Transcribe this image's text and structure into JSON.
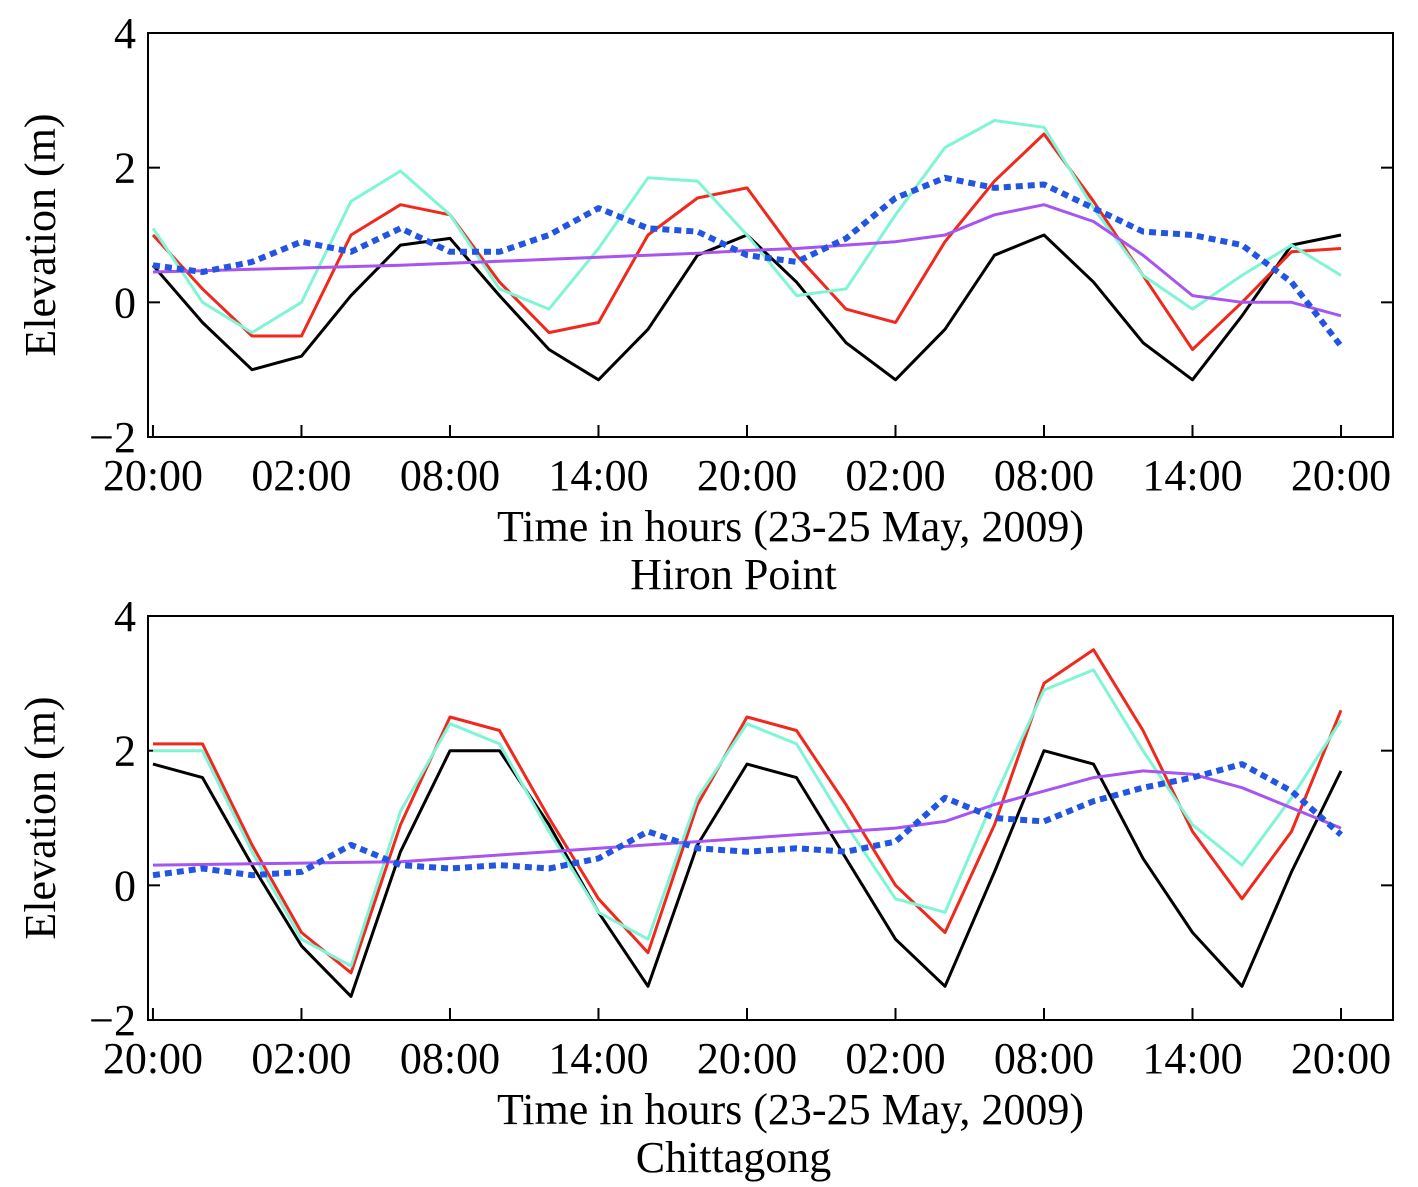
{
  "chart_data": [
    {
      "type": "line",
      "title": "Hiron Point",
      "x_label": "Time in hours (23-25 May, 2009)",
      "y_label": "Elevation (m)",
      "x": [
        0,
        2,
        4,
        6,
        8,
        10,
        12,
        14,
        16,
        18,
        20,
        22,
        24,
        26,
        28,
        30,
        32,
        34,
        36,
        38,
        40,
        42,
        44,
        46,
        48
      ],
      "xlim": [
        -0.2,
        50.1
      ],
      "xticks": [
        {
          "value": 0,
          "label": "20:00"
        },
        {
          "value": 6,
          "label": "02:00"
        },
        {
          "value": 12,
          "label": "08:00"
        },
        {
          "value": 18,
          "label": "14:00"
        },
        {
          "value": 24,
          "label": "20:00"
        },
        {
          "value": 30,
          "label": "02:00"
        },
        {
          "value": 36,
          "label": "08:00"
        },
        {
          "value": 42,
          "label": "14:00"
        },
        {
          "value": 48,
          "label": "20:00"
        }
      ],
      "ylim": [
        -2,
        4
      ],
      "yticks": [
        {
          "value": -2,
          "label": "−2"
        },
        0,
        2,
        4
      ],
      "series": [
        {
          "color": "#000000",
          "style": "solid",
          "values": [
            0.55,
            -0.3,
            -1.0,
            -0.8,
            0.1,
            0.85,
            0.95,
            0.1,
            -0.7,
            -1.15,
            -0.4,
            0.7,
            1.0,
            0.3,
            -0.6,
            -1.15,
            -0.4,
            0.7,
            1.0,
            0.3,
            -0.6,
            -1.15,
            -0.2,
            0.85,
            1.0
          ]
        },
        {
          "color": "#f0291e",
          "style": "solid",
          "values": [
            1.0,
            0.2,
            -0.5,
            -0.5,
            1.0,
            1.45,
            1.3,
            0.3,
            -0.45,
            -0.3,
            1.0,
            1.55,
            1.7,
            0.7,
            -0.1,
            -0.3,
            0.9,
            1.8,
            2.5,
            1.5,
            0.4,
            -0.7,
            0.0,
            0.75,
            0.8
          ]
        },
        {
          "color": "#7ff5d6",
          "style": "solid",
          "values": [
            1.1,
            0.0,
            -0.45,
            0.0,
            1.5,
            1.95,
            1.3,
            0.2,
            -0.1,
            0.8,
            1.85,
            1.8,
            1.0,
            0.1,
            0.2,
            1.3,
            2.3,
            2.7,
            2.6,
            1.4,
            0.4,
            -0.1,
            0.4,
            0.85,
            0.4
          ]
        },
        {
          "color": "#a855f0",
          "style": "solid",
          "values": [
            0.45,
            0.47,
            0.49,
            0.51,
            0.53,
            0.55,
            0.58,
            0.61,
            0.64,
            0.67,
            0.7,
            0.73,
            0.77,
            0.8,
            0.85,
            0.9,
            1.0,
            1.3,
            1.45,
            1.2,
            0.7,
            0.1,
            0.0,
            0.0,
            -0.2
          ]
        },
        {
          "color": "#2255e0",
          "style": "dotted",
          "values": [
            0.55,
            0.45,
            0.6,
            0.9,
            0.75,
            1.1,
            0.75,
            0.75,
            1.0,
            1.4,
            1.1,
            1.05,
            0.7,
            0.6,
            0.95,
            1.55,
            1.85,
            1.7,
            1.75,
            1.4,
            1.05,
            1.0,
            0.85,
            0.3,
            -0.65
          ]
        }
      ]
    },
    {
      "type": "line",
      "title": "Chittagong",
      "x_label": "Time in hours (23-25 May, 2009)",
      "y_label": "Elevation (m)",
      "x": [
        0,
        2,
        4,
        6,
        8,
        10,
        12,
        14,
        16,
        18,
        20,
        22,
        24,
        26,
        28,
        30,
        32,
        34,
        36,
        38,
        40,
        42,
        44,
        46,
        48
      ],
      "xlim": [
        -0.2,
        50.1
      ],
      "xticks": [
        {
          "value": 0,
          "label": "20:00"
        },
        {
          "value": 6,
          "label": "02:00"
        },
        {
          "value": 12,
          "label": "08:00"
        },
        {
          "value": 18,
          "label": "14:00"
        },
        {
          "value": 24,
          "label": "20:00"
        },
        {
          "value": 30,
          "label": "02:00"
        },
        {
          "value": 36,
          "label": "08:00"
        },
        {
          "value": 42,
          "label": "14:00"
        },
        {
          "value": 48,
          "label": "20:00"
        }
      ],
      "ylim": [
        -2,
        4
      ],
      "yticks": [
        {
          "value": -2,
          "label": "−2"
        },
        0,
        2,
        4
      ],
      "series": [
        {
          "color": "#000000",
          "style": "solid",
          "values": [
            1.8,
            1.6,
            0.3,
            -0.9,
            -1.65,
            0.5,
            2.0,
            2.0,
            0.9,
            -0.4,
            -1.5,
            0.6,
            1.8,
            1.6,
            0.4,
            -0.8,
            -1.5,
            0.2,
            2.0,
            1.8,
            0.4,
            -0.7,
            -1.5,
            0.2,
            1.7
          ]
        },
        {
          "color": "#f0291e",
          "style": "solid",
          "values": [
            2.1,
            2.1,
            0.6,
            -0.7,
            -1.3,
            0.9,
            2.5,
            2.3,
            1.0,
            -0.2,
            -1.0,
            1.2,
            2.5,
            2.3,
            1.2,
            0.0,
            -0.7,
            0.9,
            3.0,
            3.5,
            2.3,
            0.8,
            -0.2,
            0.8,
            2.6
          ]
        },
        {
          "color": "#7ff5d6",
          "style": "solid",
          "values": [
            2.0,
            2.0,
            0.5,
            -0.8,
            -1.2,
            1.1,
            2.4,
            2.1,
            0.8,
            -0.4,
            -0.8,
            1.3,
            2.4,
            2.1,
            0.9,
            -0.2,
            -0.4,
            1.3,
            2.9,
            3.2,
            2.0,
            0.9,
            0.3,
            1.3,
            2.45
          ]
        },
        {
          "color": "#a855f0",
          "style": "solid",
          "values": [
            0.3,
            0.31,
            0.32,
            0.33,
            0.34,
            0.35,
            0.4,
            0.45,
            0.5,
            0.55,
            0.6,
            0.65,
            0.7,
            0.75,
            0.8,
            0.85,
            0.95,
            1.2,
            1.4,
            1.6,
            1.7,
            1.65,
            1.45,
            1.15,
            0.85
          ]
        },
        {
          "color": "#2255e0",
          "style": "dotted",
          "values": [
            0.15,
            0.25,
            0.15,
            0.2,
            0.6,
            0.3,
            0.25,
            0.3,
            0.25,
            0.4,
            0.8,
            0.55,
            0.5,
            0.55,
            0.5,
            0.65,
            1.3,
            1.0,
            0.95,
            1.25,
            1.45,
            1.6,
            1.8,
            1.4,
            0.75
          ]
        }
      ]
    }
  ]
}
